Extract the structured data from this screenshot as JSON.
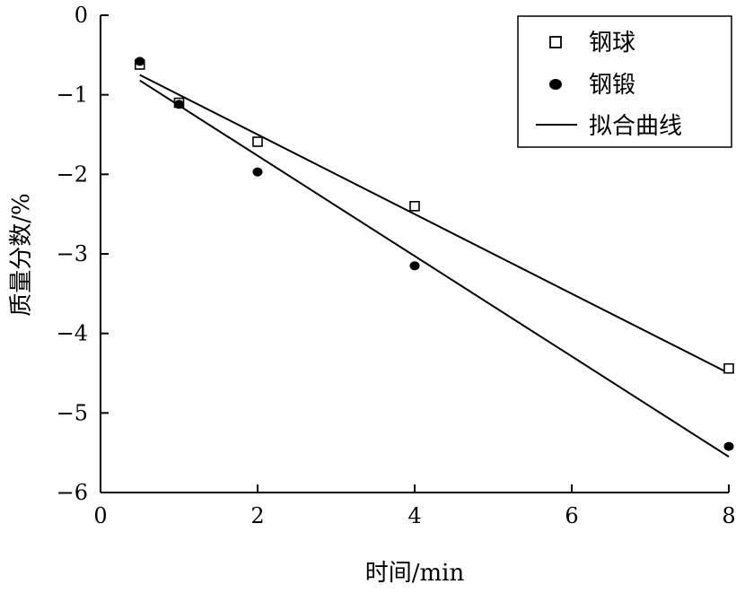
{
  "chart_data": {
    "type": "scatter",
    "xlabel": "时间/min",
    "ylabel": "质量分数/%",
    "xlim": [
      0,
      8
    ],
    "ylim": [
      -6,
      0
    ],
    "xticks": [
      0,
      2,
      4,
      6,
      8
    ],
    "yticks": [
      0,
      -1,
      -2,
      -3,
      -4,
      -5,
      -6
    ],
    "grid": false,
    "legend_position": "top-right",
    "series": [
      {
        "name": "钢球",
        "marker": "open-square",
        "x": [
          0.5,
          1.0,
          2.0,
          4.0,
          8.0
        ],
        "y": [
          -0.62,
          -1.1,
          -1.59,
          -2.4,
          -4.44
        ]
      },
      {
        "name": "钢锻",
        "marker": "filled-circle",
        "x": [
          0.5,
          1.0,
          2.0,
          4.0,
          8.0
        ],
        "y": [
          -0.58,
          -1.12,
          -1.97,
          -3.15,
          -5.42
        ]
      }
    ],
    "fit_lines": [
      {
        "series": "钢球",
        "x": [
          0.5,
          8.0
        ],
        "y": [
          -0.75,
          -4.5
        ]
      },
      {
        "series": "钢锻",
        "x": [
          0.5,
          8.0
        ],
        "y": [
          -0.82,
          -5.55
        ]
      }
    ],
    "fit_legend_label": "拟合曲线"
  }
}
